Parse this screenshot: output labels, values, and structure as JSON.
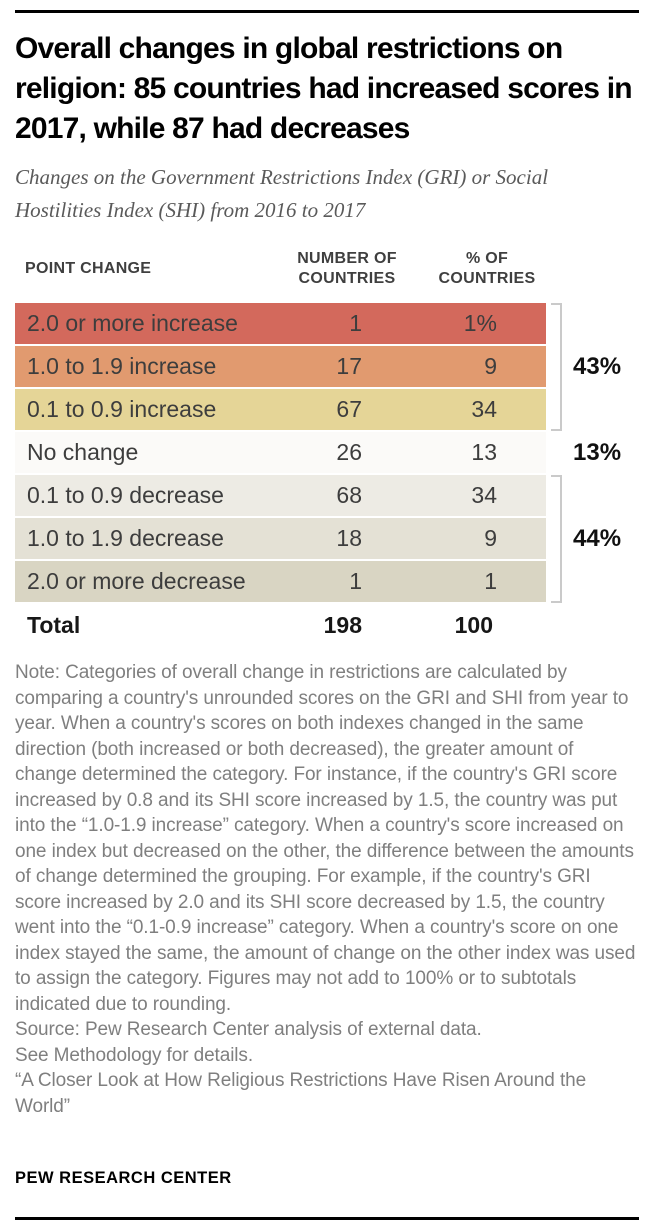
{
  "header": {
    "title": "Overall changes in global restrictions on religion: 85 countries had increased scores in 2017, while 87 had decreases",
    "subtitle": "Changes on the Government Restrictions Index (GRI) or Social Hostilities Index (SHI) from 2016 to 2017"
  },
  "chart_data": {
    "type": "table",
    "title": "Overall changes in global restrictions on religion: 85 countries had increased scores in 2017, while 87 had decreases",
    "subtitle": "Changes on the Government Restrictions Index (GRI) or Social Hostilities Index (SHI) from 2016 to 2017",
    "columns": [
      "POINT CHANGE",
      "NUMBER OF COUNTRIES",
      "% OF COUNTRIES"
    ],
    "rows": [
      {
        "label": "2.0 or more increase",
        "countries": "1",
        "pct_of_countries": "1%",
        "color": "#d3695c"
      },
      {
        "label": "1.0 to 1.9 increase",
        "countries": "17",
        "pct_of_countries": "9",
        "color": "#e19a6f"
      },
      {
        "label": "0.1 to 0.9 increase",
        "countries": "67",
        "pct_of_countries": "34",
        "color": "#e5d597"
      },
      {
        "label": "No change",
        "countries": "26",
        "pct_of_countries": "13",
        "color": "#fbfaf8"
      },
      {
        "label": "0.1 to 0.9 decrease",
        "countries": "68",
        "pct_of_countries": "34",
        "color": "#edebe4"
      },
      {
        "label": "1.0 to 1.9 decrease",
        "countries": "18",
        "pct_of_countries": "9",
        "color": "#e4e1d5"
      },
      {
        "label": "2.0 or more decrease",
        "countries": "1",
        "pct_of_countries": "1",
        "color": "#d9d5c3"
      }
    ],
    "total_row": {
      "label": "Total",
      "countries": "198",
      "pct_of_countries": "100"
    },
    "group_summaries": [
      {
        "label": "43%",
        "group": "increase",
        "row_span": [
          0,
          2
        ],
        "bracket": true
      },
      {
        "label": "13%",
        "group": "no-change",
        "row_span": [
          3,
          3
        ],
        "bracket": false
      },
      {
        "label": "44%",
        "group": "decrease",
        "row_span": [
          4,
          6
        ],
        "bracket": true
      }
    ],
    "bracket_color": "#cacaca"
  },
  "notes": {
    "note": "Note: Categories of overall change in restrictions are calculated by comparing a country's unrounded scores on the GRI and SHI from year to year. When a country's scores on both indexes changed in the same direction (both increased or both decreased), the greater amount of change determined the category. For instance, if the country's GRI score increased by 0.8 and its SHI score increased by 1.5, the country was put into the “1.0-1.9 increase” category. When a country's score increased on one index but decreased on the other, the difference between the amounts of change determined the grouping. For example, if the country's GRI score increased by 2.0 and its SHI score decreased by 1.5, the country went into the “0.1-0.9 increase” category. When a country's score on one index stayed the same, the amount of change on the other index was used to assign the category. Figures may not add to 100% or to subtotals indicated due to rounding.",
    "source": "Source: Pew Research Center analysis of external data.",
    "methodology": "See Methodology for details.",
    "report_title": "“A Closer Look at How Religious Restrictions Have Risen Around the World”"
  },
  "footer": {
    "brand": "PEW RESEARCH CENTER"
  }
}
